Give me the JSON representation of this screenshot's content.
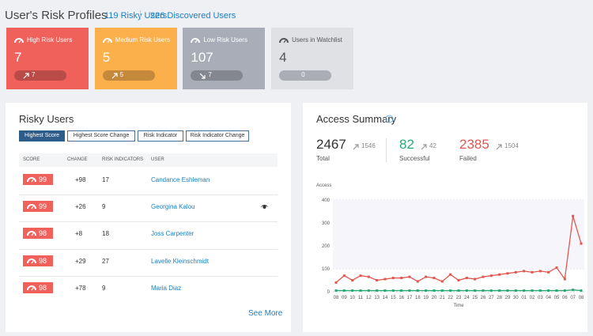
{
  "header": {
    "title": "User's Risk Profiles",
    "links": [
      "119 Risky Users",
      "226 Discovered Users"
    ]
  },
  "cards": [
    {
      "title": "High Risk Users",
      "value": 7,
      "change": 7,
      "trend": "up",
      "color": "#f0615c"
    },
    {
      "title": "Medium Risk Users",
      "value": 5,
      "change": 5,
      "trend": "up",
      "color": "#fbb04c"
    },
    {
      "title": "Low Risk Users",
      "value": 107,
      "change": 7,
      "trend": "down",
      "color": "#a9adb8"
    },
    {
      "title": "Users in Watchlist",
      "value": 4,
      "change": 0,
      "color": "#dfe1e5"
    }
  ],
  "risky_users": {
    "title": "Risky Users",
    "filters": [
      "Highest Score",
      "Highest Score Change",
      "Risk Indicator",
      "Risk Indicator Change"
    ],
    "active_filter": 0,
    "columns": [
      "SCORE",
      "CHANGE",
      "RISK INDICATORS",
      "USER"
    ],
    "rows": [
      {
        "score": 99,
        "change": "+98",
        "indicators": 17,
        "user": "Candance Eshleman",
        "watchlist": false
      },
      {
        "score": 99,
        "change": "+26",
        "indicators": 9,
        "user": "Georgina Kalou",
        "watchlist": true
      },
      {
        "score": 98,
        "change": "+8",
        "indicators": 18,
        "user": "Joss Carpenter",
        "watchlist": false
      },
      {
        "score": 98,
        "change": "+29",
        "indicators": 27,
        "user": "Lavelle Kleinschmidt",
        "watchlist": false
      },
      {
        "score": 98,
        "change": "+78",
        "indicators": 9,
        "user": "Maria Diaz",
        "watchlist": false
      }
    ],
    "see_more": "See More"
  },
  "access_summary": {
    "title": "Access Summary",
    "stats": [
      {
        "value": 2467,
        "change": 1546,
        "label": "Total",
        "color": "#333333"
      },
      {
        "value": 82,
        "change": 42,
        "label": "Successful",
        "color": "#2aa876"
      },
      {
        "value": 2385,
        "change": 1504,
        "label": "Failed",
        "color": "#e0574f"
      }
    ]
  },
  "chart_data": {
    "type": "line",
    "y_label": "Access",
    "x_label": "Time",
    "categories": [
      "08",
      "09",
      "10",
      "11",
      "12",
      "13",
      "14",
      "15",
      "16",
      "17",
      "18",
      "19",
      "20",
      "21",
      "22",
      "23",
      "24",
      "25",
      "26",
      "27",
      "28",
      "29",
      "30",
      "01",
      "02",
      "03",
      "04",
      "05",
      "06",
      "07",
      "08"
    ],
    "series": [
      {
        "color": "#e0574f",
        "values": [
          40,
          70,
          50,
          70,
          65,
          50,
          55,
          60,
          60,
          65,
          45,
          65,
          60,
          45,
          75,
          50,
          60,
          55,
          65,
          70,
          75,
          80,
          85,
          90,
          85,
          90,
          85,
          105,
          55,
          330,
          210
        ]
      },
      {
        "color": "#2aa876",
        "values": [
          5,
          5,
          5,
          5,
          5,
          5,
          5,
          5,
          5,
          5,
          5,
          5,
          5,
          5,
          5,
          5,
          5,
          5,
          5,
          5,
          5,
          5,
          5,
          5,
          5,
          5,
          5,
          5,
          5,
          8,
          5
        ]
      }
    ],
    "ylim": [
      0,
      400
    ],
    "yticks": [
      0,
      100,
      200,
      300,
      400
    ],
    "grid": true
  }
}
